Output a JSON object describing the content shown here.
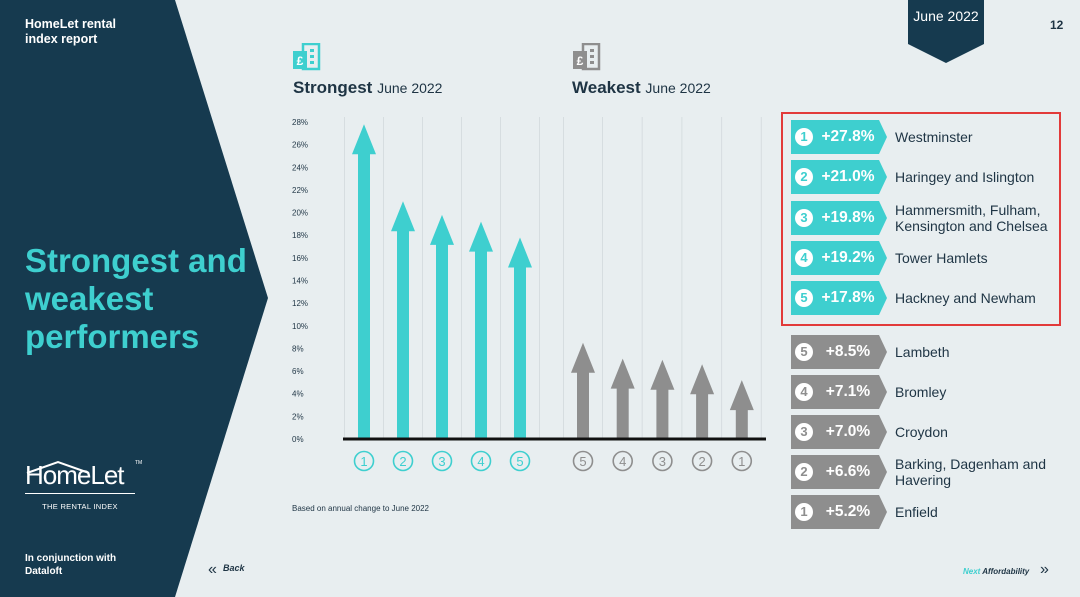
{
  "header": {
    "report_title": "HomeLet rental index report",
    "date_badge": "June 2022",
    "page_number": "12"
  },
  "left_panel": {
    "headline": "Strongest and weakest performers",
    "logo_word": "HomeLet",
    "logo_tagline": "THE RENTAL INDEX",
    "logo_tm": "TM",
    "partner_note": "In conjunction with Dataloft"
  },
  "sections": {
    "strongest_title": "Strongest",
    "strongest_sub": "June 2022",
    "weakest_title": "Weakest",
    "weakest_sub": "June 2022"
  },
  "footnote": "Based on annual change to June 2022",
  "chart_data": {
    "type": "bar",
    "ylim": [
      0,
      28
    ],
    "yticks": [
      "0%",
      "2%",
      "4%",
      "6%",
      "8%",
      "10%",
      "12%",
      "14%",
      "16%",
      "18%",
      "20%",
      "22%",
      "24%",
      "26%",
      "28%"
    ],
    "grid": "vertical",
    "series": [
      {
        "categories": [
          "1",
          "2",
          "3",
          "4",
          "5"
        ],
        "values": [
          27.8,
          21.0,
          19.8,
          19.2,
          17.8
        ],
        "color": "#3ecfcf"
      },
      {
        "categories": [
          "5",
          "4",
          "3",
          "2",
          "1"
        ],
        "values": [
          8.5,
          7.1,
          7.0,
          6.6,
          5.2
        ],
        "color": "#8e8e8e"
      }
    ]
  },
  "strongest": [
    {
      "rank": "1",
      "change": "+27.8%",
      "area": "Westminster"
    },
    {
      "rank": "2",
      "change": "+21.0%",
      "area": "Haringey and Islington"
    },
    {
      "rank": "3",
      "change": "+19.8%",
      "area": "Hammersmith, Fulham, Kensington and Chelsea"
    },
    {
      "rank": "4",
      "change": "+19.2%",
      "area": "Tower Hamlets"
    },
    {
      "rank": "5",
      "change": "+17.8%",
      "area": "Hackney and Newham"
    }
  ],
  "weakest": [
    {
      "rank": "5",
      "change": "+8.5%",
      "area": "Lambeth"
    },
    {
      "rank": "4",
      "change": "+7.1%",
      "area": "Bromley"
    },
    {
      "rank": "3",
      "change": "+7.0%",
      "area": "Croydon"
    },
    {
      "rank": "2",
      "change": "+6.6%",
      "area": "Barking, Dagenham and Havering"
    },
    {
      "rank": "1",
      "change": "+5.2%",
      "area": "Enfield"
    }
  ],
  "nav": {
    "back_label": "Back",
    "next_prefix": "Next",
    "next_label": "Affordability"
  },
  "colors": {
    "navy": "#163a4f",
    "teal": "#3ecfcf",
    "grey": "#8e8e8e",
    "highlight": "#e23a3a"
  },
  "icons": {
    "section": "pound-building-icon",
    "nav_back": "double-chevron-left-icon",
    "nav_next": "double-chevron-right-icon"
  }
}
